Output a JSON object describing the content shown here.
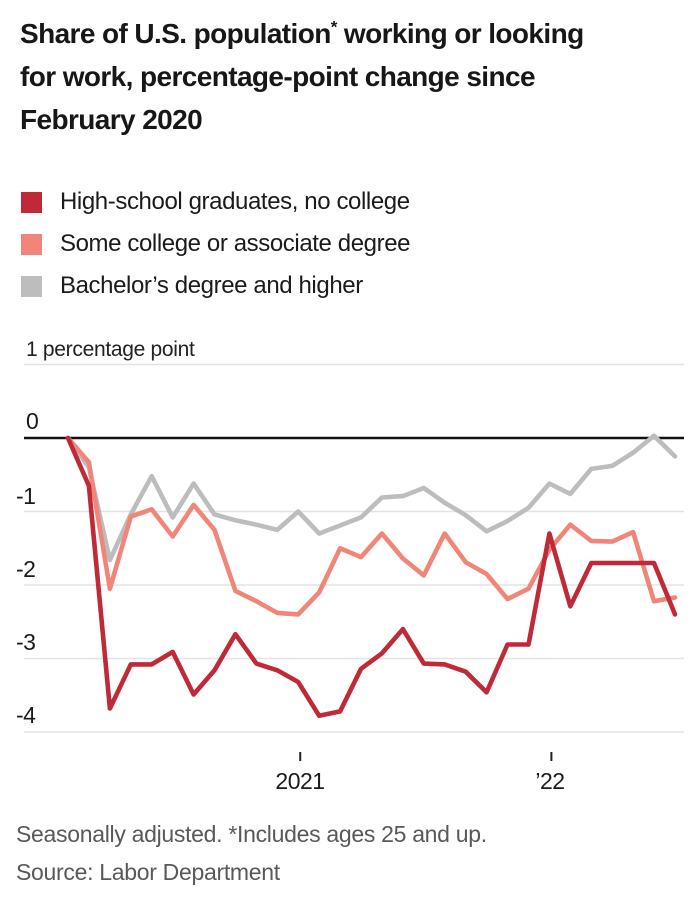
{
  "header": {
    "title_pre": "Share of U.S. population",
    "title_star": "*",
    "title_post_line1": " working or looking",
    "title_line2": "for work, percentage-point change since",
    "title_line3": "February 2020"
  },
  "legend": {
    "items": [
      {
        "label": "High-school graduates, no college",
        "color": "#c02a38"
      },
      {
        "label": "Some college or associate degree",
        "color": "#f08679"
      },
      {
        "label": "Bachelor’s degree and higher",
        "color": "#bdbdbd"
      }
    ]
  },
  "y_axis": {
    "unit_label": "1 percentage point",
    "labels": [
      "0",
      "-1",
      "-2",
      "-3",
      "-4"
    ]
  },
  "x_axis": {
    "labels": [
      "2021",
      "’22"
    ]
  },
  "footnotes": {
    "note": "Seasonally adjusted. *Includes ages 25 and up.",
    "source": "Source: Labor Department"
  },
  "chart_data": {
    "type": "line",
    "title": "Share of U.S. population* working or looking for work, percentage-point change since February 2020",
    "ylabel": "percentage points",
    "ylim": [
      -4.4,
      1
    ],
    "grid": "horizontal",
    "legend_position": "top-left",
    "x": [
      "Feb 2020",
      "Mar 2020",
      "Apr 2020",
      "May 2020",
      "Jun 2020",
      "Jul 2020",
      "Aug 2020",
      "Sep 2020",
      "Oct 2020",
      "Nov 2020",
      "Dec 2020",
      "Jan 2021",
      "Feb 2021",
      "Mar 2021",
      "Apr 2021",
      "May 2021",
      "Jun 2021",
      "Jul 2021",
      "Aug 2021",
      "Sep 2021",
      "Oct 2021",
      "Nov 2021",
      "Dec 2021",
      "Jan 2022",
      "Feb 2022",
      "Mar 2022",
      "Apr 2022",
      "May 2022",
      "Jun 2022",
      "Jul 2022"
    ],
    "y_ticks": [
      1,
      0,
      -1,
      -2,
      -3,
      -4
    ],
    "x_ticks": [
      {
        "label": "2021",
        "month_index": 11
      },
      {
        "label": "'22",
        "month_index": 23
      }
    ],
    "series": [
      {
        "name": "High-school graduates, no college",
        "color": "#c02a38",
        "values": [
          0.0,
          -0.65,
          -3.68,
          -3.08,
          -3.08,
          -2.91,
          -3.49,
          -3.16,
          -2.67,
          -3.07,
          -3.16,
          -3.32,
          -3.78,
          -3.72,
          -3.14,
          -2.93,
          -2.6,
          -3.07,
          -3.08,
          -3.18,
          -3.46,
          -2.81,
          -2.81,
          -1.3,
          -2.29,
          -1.7,
          -1.7,
          -1.7,
          -1.7,
          -2.4
        ]
      },
      {
        "name": "Some college or associate degree",
        "color": "#f08679",
        "values": [
          0.0,
          -0.33,
          -2.05,
          -1.07,
          -0.97,
          -1.34,
          -0.91,
          -1.25,
          -2.08,
          -2.22,
          -2.38,
          -2.4,
          -2.1,
          -1.5,
          -1.62,
          -1.3,
          -1.64,
          -1.87,
          -1.3,
          -1.69,
          -1.85,
          -2.19,
          -2.05,
          -1.52,
          -1.18,
          -1.4,
          -1.41,
          -1.28,
          -2.22,
          -2.17
        ]
      },
      {
        "name": "Bachelor's degree and higher",
        "color": "#bdbdbd",
        "values": [
          0.0,
          -0.4,
          -1.66,
          -1.04,
          -0.52,
          -1.08,
          -0.62,
          -1.04,
          -1.12,
          -1.18,
          -1.25,
          -1.0,
          -1.3,
          -1.19,
          -1.08,
          -0.81,
          -0.79,
          -0.68,
          -0.88,
          -1.05,
          -1.27,
          -1.13,
          -0.95,
          -0.62,
          -0.76,
          -0.42,
          -0.38,
          -0.2,
          0.03,
          -0.25
        ]
      }
    ]
  }
}
